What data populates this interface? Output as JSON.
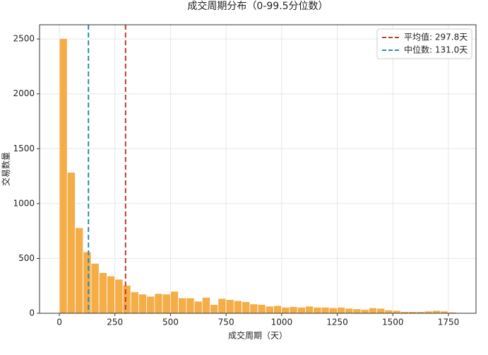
{
  "chart_data": {
    "type": "histogram",
    "title": "成交周期分布（0-99.5分位数）",
    "x_label": "成交周期（天）",
    "y_label": "交易数量",
    "bins": [
      0,
      35.7,
      71.4,
      107.1,
      142.8,
      178.5,
      214.2,
      249.9,
      285.6,
      321.3,
      357,
      392.7,
      428.4,
      464.1,
      499.8,
      535.5,
      571.2,
      606.9,
      642.6,
      678.3,
      714,
      749.7,
      785.4,
      821.1,
      856.8,
      892.5,
      928.2,
      963.9,
      999.6,
      1035.3,
      1071,
      1106.7,
      1142.4,
      1178.1,
      1213.8,
      1249.5,
      1285.2,
      1320.9,
      1356.6,
      1392.3,
      1428,
      1463.7,
      1499.4,
      1535.1,
      1570.8,
      1606.5,
      1642.2,
      1677.9,
      1713.6,
      1749.3,
      1785
    ],
    "values": [
      2505,
      1285,
      780,
      560,
      455,
      370,
      340,
      310,
      255,
      195,
      175,
      155,
      180,
      175,
      200,
      140,
      140,
      110,
      145,
      80,
      135,
      125,
      115,
      105,
      85,
      80,
      65,
      70,
      55,
      60,
      55,
      65,
      55,
      55,
      50,
      55,
      45,
      40,
      35,
      50,
      45,
      30,
      25,
      15,
      15,
      15,
      20,
      25,
      20,
      10
    ],
    "color": "#f5ad48",
    "lines": [
      {
        "name": "平均值: 297.8天",
        "value": 297.8,
        "color": "#c0392b"
      },
      {
        "name": "中位数: 131.0天",
        "value": 131.0,
        "color": "#2b8cb0"
      }
    ],
    "xlim": [
      -89,
      1874
    ],
    "ylim": [
      0,
      2630
    ],
    "xticks": [
      0,
      250,
      500,
      750,
      1000,
      1250,
      1500,
      1750
    ],
    "yticks": [
      0,
      500,
      1000,
      1500,
      2000,
      2500
    ],
    "grid": true,
    "legend": "upper right"
  }
}
